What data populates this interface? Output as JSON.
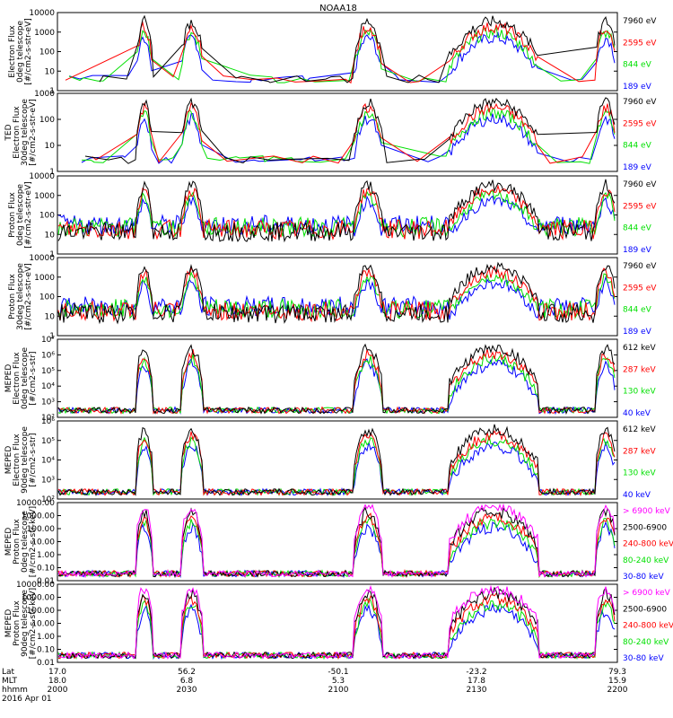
{
  "title": "NOAA18",
  "colors": {
    "black": "#000000",
    "red": "#ff0000",
    "green": "#00e000",
    "blue": "#0000ff",
    "magenta": "#ff00ff"
  },
  "chart_data": [
    {
      "type": "line",
      "yscale": "log",
      "ylabel": [
        "Electron Flux",
        "0deg telescope",
        "[#/cm2-s-str-eV]"
      ],
      "ylim": [
        1,
        10000
      ],
      "yticks": [
        "1",
        "10",
        "100",
        "1000",
        "10000"
      ],
      "series": [
        {
          "name": "7960 eV",
          "color": "#000000"
        },
        {
          "name": "2595 eV",
          "color": "#ff0000"
        },
        {
          "name": "844 eV",
          "color": "#00e000"
        },
        {
          "name": "189 eV",
          "color": "#0000ff"
        }
      ]
    },
    {
      "type": "line",
      "yscale": "log",
      "ylabel": [
        "TED",
        "Electron Flux",
        "30deg telescope",
        "[#/cm2-s-str-eV]"
      ],
      "ylim": [
        1,
        1000
      ],
      "yticks": [
        "1",
        "10",
        "100",
        "1000"
      ],
      "series": [
        {
          "name": "7960 eV",
          "color": "#000000"
        },
        {
          "name": "2595 eV",
          "color": "#ff0000"
        },
        {
          "name": "844 eV",
          "color": "#00e000"
        },
        {
          "name": "189 eV",
          "color": "#0000ff"
        }
      ]
    },
    {
      "type": "line",
      "yscale": "log",
      "ylabel": [
        "Proton Flux",
        "0deg telescope",
        "[#/cm2-s-str-eV]"
      ],
      "ylim": [
        1,
        10000
      ],
      "yticks": [
        "1",
        "10",
        "100",
        "1000",
        "10000"
      ],
      "series": [
        {
          "name": "7960 eV",
          "color": "#000000"
        },
        {
          "name": "2595 eV",
          "color": "#ff0000"
        },
        {
          "name": "844 eV",
          "color": "#00e000"
        },
        {
          "name": "189 eV",
          "color": "#0000ff"
        }
      ]
    },
    {
      "type": "line",
      "yscale": "log",
      "ylabel": [
        "Proton Flux",
        "30deg telescope",
        "[#/cm2-s-str-eV]"
      ],
      "ylim": [
        1,
        10000
      ],
      "yticks": [
        "1",
        "10",
        "100",
        "1000",
        "10000"
      ],
      "series": [
        {
          "name": "7960 eV",
          "color": "#000000"
        },
        {
          "name": "2595 eV",
          "color": "#ff0000"
        },
        {
          "name": "844 eV",
          "color": "#00e000"
        },
        {
          "name": "189 eV",
          "color": "#0000ff"
        }
      ]
    },
    {
      "type": "line",
      "yscale": "log",
      "ylabel": [
        "MEPED",
        "Electron Flux",
        "0deg telescope",
        "[#/cm2-s-str]"
      ],
      "ylim": [
        100,
        10000000
      ],
      "yticks": [
        "10²",
        "10³",
        "10⁴",
        "10⁵",
        "10⁶",
        "10⁷"
      ],
      "series": [
        {
          "name": "612 keV",
          "color": "#000000"
        },
        {
          "name": "287 keV",
          "color": "#ff0000"
        },
        {
          "name": "130 keV",
          "color": "#00e000"
        },
        {
          "name": "40 keV",
          "color": "#0000ff"
        }
      ]
    },
    {
      "type": "line",
      "yscale": "log",
      "ylabel": [
        "MEPED",
        "Electron Flux",
        "90deg telescope",
        "[#/cm2-s-str]"
      ],
      "ylim": [
        100,
        1000000
      ],
      "yticks": [
        "10²",
        "10³",
        "10⁴",
        "10⁵",
        "10⁶"
      ],
      "series": [
        {
          "name": "612 keV",
          "color": "#000000"
        },
        {
          "name": "287 keV",
          "color": "#ff0000"
        },
        {
          "name": "130 keV",
          "color": "#00e000"
        },
        {
          "name": "40 keV",
          "color": "#0000ff"
        }
      ]
    },
    {
      "type": "line",
      "yscale": "log",
      "ylabel": [
        "MEPED",
        "Proton Flux",
        "0deg telescope",
        "[#/cm2-s-str-keV]"
      ],
      "ylim": [
        0.01,
        10000
      ],
      "yticks": [
        "0.01",
        "0.10",
        "1.00",
        "10.00",
        "100.00",
        "1000.00",
        "10000.00"
      ],
      "series": [
        {
          "name": "> 6900 keV",
          "color": "#ff00ff"
        },
        {
          "name": "2500-6900",
          "color": "#000000"
        },
        {
          "name": "240-800 keV",
          "color": "#ff0000"
        },
        {
          "name": "80-240 keV",
          "color": "#00e000"
        },
        {
          "name": "30-80 keV",
          "color": "#0000ff"
        }
      ]
    },
    {
      "type": "line",
      "yscale": "log",
      "ylabel": [
        "MEPED",
        "Proton Flux",
        "90deg telescope",
        "[#/cm2-s-str-keV]"
      ],
      "ylim": [
        0.01,
        10000
      ],
      "yticks": [
        "0.01",
        "0.10",
        "1.00",
        "10.00",
        "100.00",
        "1000.00",
        "10000.00"
      ],
      "series": [
        {
          "name": "> 6900 keV",
          "color": "#ff00ff"
        },
        {
          "name": "2500-6900",
          "color": "#000000"
        },
        {
          "name": "240-800 keV",
          "color": "#ff0000"
        },
        {
          "name": "80-240 keV",
          "color": "#00e000"
        },
        {
          "name": "30-80 keV",
          "color": "#0000ff"
        }
      ]
    }
  ],
  "x_axis": {
    "row_labels": [
      "Lat",
      "MLT",
      "hhmm"
    ],
    "ticks": [
      {
        "lat": "17.0",
        "mlt": "18.0",
        "hhmm": "2000"
      },
      {
        "lat": "56.2",
        "mlt": "6.8",
        "hhmm": "2030"
      },
      {
        "lat": "-50.1",
        "mlt": "5.3",
        "hhmm": "2100"
      },
      {
        "lat": "-23.2",
        "mlt": "17.8",
        "hhmm": "2130"
      },
      {
        "lat": "79.3",
        "mlt": "15.9",
        "hhmm": "2200"
      }
    ],
    "date": "2016 Apr 01"
  }
}
